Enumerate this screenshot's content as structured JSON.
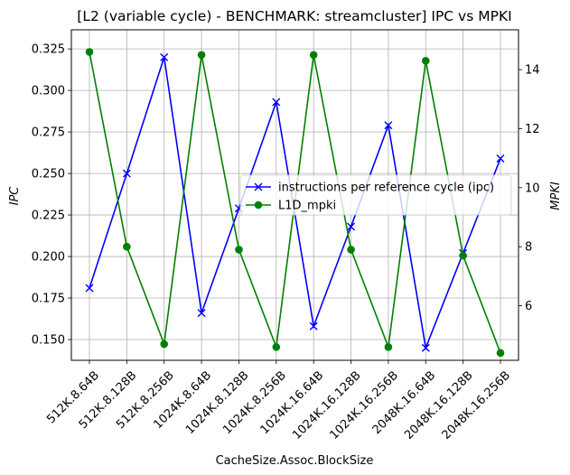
{
  "chart_data": {
    "type": "line",
    "title": "[L2 (variable cycle) - BENCHMARK: streamcluster]  IPC vs MPKI",
    "xlabel": "CacheSize.Assoc.BlockSize",
    "ylabel_left": "IPC",
    "ylabel_right": "MPKI",
    "categories": [
      "512K.8.64B",
      "512K.8.128B",
      "512K.8.256B",
      "1024K.8.64B",
      "1024K.8.128B",
      "1024K.8.256B",
      "1024K.16.64B",
      "1024K.16.128B",
      "1024K.16.256B",
      "2048K.16.64B",
      "2048K.16.128B",
      "2048K.16.256B"
    ],
    "ylim_left": [
      0.1375,
      0.3365
    ],
    "ylim_right": [
      4.15,
      15.35
    ],
    "yticks_left": [
      0.15,
      0.175,
      0.2,
      0.225,
      0.25,
      0.275,
      0.3,
      0.325
    ],
    "yticks_left_labels": [
      "0.150",
      "0.175",
      "0.200",
      "0.225",
      "0.250",
      "0.275",
      "0.300",
      "0.325"
    ],
    "yticks_right": [
      6,
      8,
      10,
      12,
      14
    ],
    "yticks_right_labels": [
      "6",
      "8",
      "10",
      "12",
      "14"
    ],
    "grid": true,
    "legend_position": "center-right",
    "series": [
      {
        "name": "instructions per reference cycle (ipc)",
        "axis": "left",
        "color": "#0000ff",
        "marker": "x",
        "values": [
          0.181,
          0.25,
          0.32,
          0.166,
          0.229,
          0.293,
          0.158,
          0.218,
          0.279,
          0.145,
          0.202,
          0.259
        ]
      },
      {
        "name": "L1D_mpki",
        "axis": "right",
        "color": "#008000",
        "marker": "o",
        "values": [
          14.6,
          8.0,
          4.7,
          14.5,
          7.9,
          4.6,
          14.5,
          7.9,
          4.6,
          14.3,
          7.7,
          4.4
        ]
      }
    ]
  }
}
